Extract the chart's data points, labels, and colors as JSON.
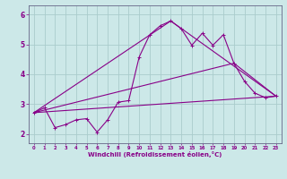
{
  "background_color": "#cce8e8",
  "grid_color": "#aacccc",
  "line_color": "#880088",
  "xlim": [
    -0.5,
    23.5
  ],
  "ylim": [
    1.7,
    6.3
  ],
  "xlabel": "Windchill (Refroidissement éolien,°C)",
  "yticks": [
    2,
    3,
    4,
    5,
    6
  ],
  "xticks": [
    0,
    1,
    2,
    3,
    4,
    5,
    6,
    7,
    8,
    9,
    10,
    11,
    12,
    13,
    14,
    15,
    16,
    17,
    18,
    19,
    20,
    21,
    22,
    23
  ],
  "series1_x": [
    0,
    1,
    2,
    3,
    4,
    5,
    6,
    7,
    8,
    9,
    10,
    11,
    12,
    13,
    14,
    15,
    16,
    17,
    18,
    19,
    20,
    21,
    22,
    23
  ],
  "series1_y": [
    2.72,
    2.88,
    2.22,
    2.32,
    2.48,
    2.52,
    2.07,
    2.48,
    3.07,
    3.12,
    4.58,
    5.32,
    5.62,
    5.78,
    5.52,
    4.97,
    5.37,
    4.97,
    5.32,
    4.37,
    3.77,
    3.37,
    3.22,
    3.27
  ],
  "series2_x": [
    0,
    23
  ],
  "series2_y": [
    2.72,
    3.27
  ],
  "series3_x": [
    0,
    13,
    23
  ],
  "series3_y": [
    2.72,
    5.78,
    3.27
  ],
  "series4_x": [
    0,
    19,
    23
  ],
  "series4_y": [
    2.72,
    4.37,
    3.27
  ],
  "marker_x": [
    0,
    1,
    2,
    3,
    4,
    5,
    6,
    7,
    8,
    9,
    10,
    11,
    12,
    13,
    14,
    15,
    16,
    17,
    18,
    19,
    20,
    21,
    22,
    23
  ],
  "marker_y": [
    2.72,
    2.88,
    2.22,
    2.32,
    2.48,
    2.52,
    2.07,
    2.48,
    3.07,
    3.12,
    4.58,
    5.32,
    5.62,
    5.78,
    5.52,
    4.97,
    5.37,
    4.97,
    5.32,
    4.37,
    3.77,
    3.37,
    3.22,
    3.27
  ]
}
